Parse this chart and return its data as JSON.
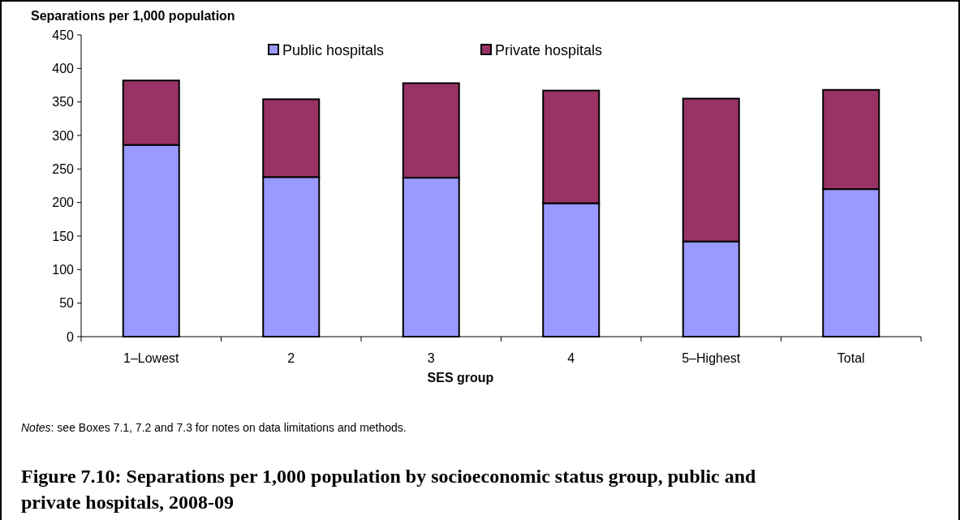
{
  "chart_data": {
    "type": "bar",
    "title": "Figure 7.10: Separations per 1,000 population by socioeconomic status group, public and private hospitals, 2008-09",
    "ylabel": "Separations per 1,000 population",
    "xlabel": "SES group",
    "annotations": [
      "Notes: see Boxes 7.1, 7.2 and 7.3 for notes on data limitations and methods."
    ],
    "categories": [
      "1–Lowest",
      "2",
      "3",
      "4",
      "5–Highest",
      "Total"
    ],
    "series": [
      {
        "name": "Public hospitals",
        "color": "#9999ff",
        "values": [
          286,
          238,
          237,
          199,
          142,
          220
        ]
      },
      {
        "name": "Private hospitals",
        "color": "#993366",
        "values": [
          96,
          116,
          141,
          168,
          213,
          148
        ]
      }
    ],
    "stacked": true,
    "ylim": [
      0,
      450
    ],
    "yticks": [
      0,
      50,
      100,
      150,
      200,
      250,
      300,
      350,
      400,
      450
    ],
    "grid": false,
    "legend": "top"
  }
}
